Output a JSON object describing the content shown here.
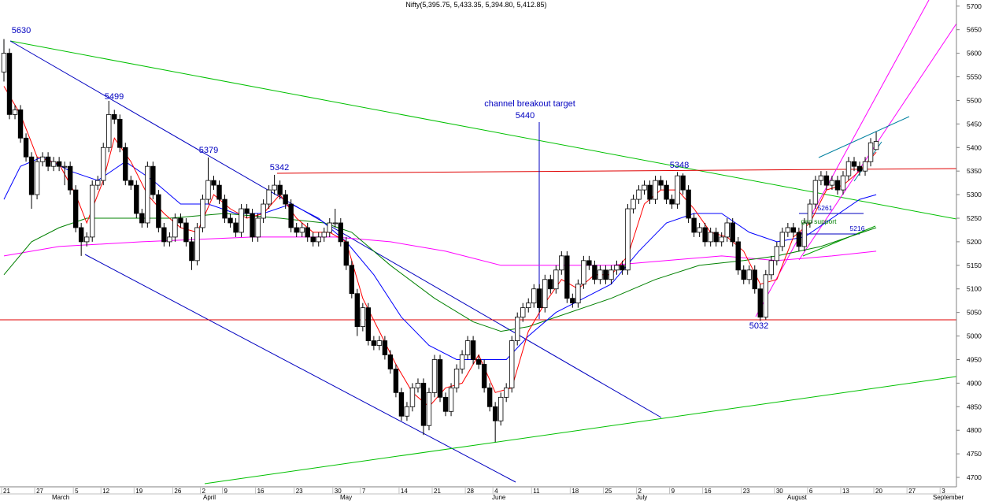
{
  "chart_data": {
    "type": "candlestick",
    "title": "Nifty(5,395.75, 5,433.35, 5,394.80, 5,412.85)",
    "ylim": [
      4680,
      5713
    ],
    "yticks": [
      4700,
      4750,
      4800,
      4850,
      4900,
      4950,
      5000,
      5050,
      5100,
      5150,
      5200,
      5250,
      5300,
      5350,
      5400,
      5450,
      5500,
      5550,
      5600,
      5650,
      5700
    ],
    "categories": [
      "21",
      null,
      null,
      null,
      null,
      null,
      "27",
      null,
      null,
      null,
      null,
      null,
      null,
      "5",
      null,
      null,
      null,
      null,
      "12",
      null,
      null,
      null,
      null,
      null,
      "19",
      null,
      null,
      null,
      null,
      null,
      null,
      "26",
      null,
      null,
      null,
      null,
      "2",
      null,
      null,
      null,
      "9",
      null,
      null,
      null,
      null,
      null,
      "16",
      null,
      null,
      null,
      null,
      null,
      null,
      "23",
      null,
      null,
      null,
      null,
      null,
      null,
      "30",
      null,
      null,
      null,
      null,
      "7",
      null,
      null,
      null,
      null,
      null,
      null,
      "14",
      null,
      null,
      null,
      null,
      null,
      "21",
      null,
      null,
      null,
      null,
      null,
      "28",
      null,
      null,
      null,
      null,
      "4",
      null,
      null,
      null,
      null,
      null,
      null,
      "11",
      null,
      null,
      null,
      null,
      null,
      null,
      "18",
      null,
      null,
      null,
      null,
      null,
      "25",
      null,
      null,
      null,
      null,
      null,
      "2",
      null,
      null,
      null,
      null,
      null,
      "9",
      null,
      null,
      null,
      null,
      null,
      "16",
      null,
      null,
      null,
      null,
      null,
      null,
      "23",
      null,
      null,
      null,
      null,
      null,
      "30",
      null,
      null,
      null,
      null,
      null,
      "6",
      null,
      null,
      null,
      null,
      null,
      "13",
      null,
      null,
      null,
      null,
      null,
      "20",
      null,
      null,
      null,
      null,
      null,
      "27",
      null,
      null,
      null,
      null,
      null,
      "3",
      null,
      null
    ],
    "months": [
      "March",
      "April",
      "May",
      "June",
      "July",
      "August",
      "September"
    ],
    "ohlc": [
      [
        5560,
        5630,
        5540,
        5600
      ],
      [
        5600,
        5610,
        5460,
        5470
      ],
      [
        5470,
        5490,
        5460,
        5480
      ],
      [
        5480,
        5490,
        5410,
        5420
      ],
      [
        5420,
        5430,
        5370,
        5380
      ],
      [
        5380,
        5390,
        5270,
        5300
      ],
      [
        5300,
        5380,
        5290,
        5370
      ],
      [
        5370,
        5390,
        5360,
        5380
      ],
      [
        5380,
        5390,
        5350,
        5360
      ],
      [
        5360,
        5380,
        5350,
        5370
      ],
      [
        5370,
        5380,
        5350,
        5360
      ],
      [
        5360,
        5370,
        5320,
        5360
      ],
      [
        5360,
        5370,
        5300,
        5310
      ],
      [
        5310,
        5320,
        5220,
        5230
      ],
      [
        5230,
        5240,
        5170,
        5200
      ],
      [
        5200,
        5220,
        5190,
        5210
      ],
      [
        5210,
        5330,
        5200,
        5320
      ],
      [
        5320,
        5340,
        5310,
        5330
      ],
      [
        5330,
        5410,
        5320,
        5400
      ],
      [
        5400,
        5499,
        5390,
        5470
      ],
      [
        5470,
        5480,
        5450,
        5460
      ],
      [
        5460,
        5470,
        5390,
        5400
      ],
      [
        5400,
        5410,
        5320,
        5330
      ],
      [
        5330,
        5340,
        5310,
        5320
      ],
      [
        5320,
        5330,
        5250,
        5260
      ],
      [
        5260,
        5270,
        5230,
        5240
      ],
      [
        5240,
        5370,
        5230,
        5360
      ],
      [
        5360,
        5370,
        5290,
        5300
      ],
      [
        5300,
        5310,
        5220,
        5230
      ],
      [
        5230,
        5240,
        5190,
        5200
      ],
      [
        5200,
        5220,
        5190,
        5210
      ],
      [
        5210,
        5260,
        5200,
        5250
      ],
      [
        5250,
        5260,
        5230,
        5240
      ],
      [
        5240,
        5250,
        5190,
        5200
      ],
      [
        5200,
        5210,
        5140,
        5160
      ],
      [
        5160,
        5240,
        5150,
        5230
      ],
      [
        5230,
        5300,
        5220,
        5290
      ],
      [
        5290,
        5379,
        5280,
        5330
      ],
      [
        5330,
        5340,
        5310,
        5320
      ],
      [
        5320,
        5330,
        5280,
        5290
      ],
      [
        5290,
        5300,
        5240,
        5250
      ],
      [
        5250,
        5260,
        5230,
        5240
      ],
      [
        5240,
        5250,
        5210,
        5220
      ],
      [
        5220,
        5280,
        5210,
        5270
      ],
      [
        5270,
        5280,
        5250,
        5260
      ],
      [
        5260,
        5270,
        5200,
        5210
      ],
      [
        5210,
        5260,
        5200,
        5250
      ],
      [
        5250,
        5290,
        5240,
        5280
      ],
      [
        5280,
        5320,
        5270,
        5310
      ],
      [
        5310,
        5342,
        5300,
        5320
      ],
      [
        5320,
        5330,
        5290,
        5300
      ],
      [
        5300,
        5310,
        5270,
        5280
      ],
      [
        5280,
        5290,
        5220,
        5230
      ],
      [
        5230,
        5240,
        5210,
        5220
      ],
      [
        5220,
        5240,
        5210,
        5230
      ],
      [
        5230,
        5240,
        5200,
        5210
      ],
      [
        5210,
        5220,
        5190,
        5200
      ],
      [
        5200,
        5220,
        5190,
        5210
      ],
      [
        5210,
        5230,
        5200,
        5220
      ],
      [
        5220,
        5250,
        5210,
        5240
      ],
      [
        5240,
        5270,
        5230,
        5240
      ],
      [
        5240,
        5250,
        5190,
        5200
      ],
      [
        5200,
        5210,
        5140,
        5150
      ],
      [
        5150,
        5160,
        5080,
        5090
      ],
      [
        5090,
        5100,
        5000,
        5020
      ],
      [
        5020,
        5070,
        5010,
        5060
      ],
      [
        5060,
        5070,
        4980,
        4990
      ],
      [
        4990,
        5000,
        4970,
        4980
      ],
      [
        4980,
        5000,
        4970,
        4990
      ],
      [
        4990,
        5000,
        4950,
        4960
      ],
      [
        4960,
        4970,
        4920,
        4930
      ],
      [
        4930,
        4940,
        4870,
        4880
      ],
      [
        4880,
        4890,
        4820,
        4830
      ],
      [
        4830,
        4860,
        4820,
        4850
      ],
      [
        4850,
        4900,
        4840,
        4890
      ],
      [
        4890,
        4910,
        4880,
        4900
      ],
      [
        4900,
        4910,
        4790,
        4810
      ],
      [
        4810,
        4890,
        4800,
        4880
      ],
      [
        4880,
        4960,
        4870,
        4950
      ],
      [
        4950,
        4960,
        4860,
        4870
      ],
      [
        4870,
        4880,
        4830,
        4840
      ],
      [
        4840,
        4900,
        4830,
        4890
      ],
      [
        4890,
        4940,
        4880,
        4930
      ],
      [
        4930,
        4970,
        4920,
        4960
      ],
      [
        4960,
        5000,
        4950,
        4990
      ],
      [
        4990,
        5000,
        4940,
        4950
      ],
      [
        4950,
        4960,
        4930,
        4940
      ],
      [
        4940,
        4950,
        4880,
        4890
      ],
      [
        4890,
        4900,
        4840,
        4850
      ],
      [
        4850,
        4860,
        4775,
        4820
      ],
      [
        4820,
        4880,
        4810,
        4870
      ],
      [
        4870,
        4900,
        4860,
        4890
      ],
      [
        4890,
        5000,
        4880,
        4990
      ],
      [
        4990,
        5050,
        4980,
        5040
      ],
      [
        5040,
        5070,
        5030,
        5060
      ],
      [
        5060,
        5080,
        5050,
        5070
      ],
      [
        5070,
        5110,
        5060,
        5100
      ],
      [
        5100,
        5110,
        5050,
        5060
      ],
      [
        5060,
        5130,
        5050,
        5120
      ],
      [
        5120,
        5130,
        5090,
        5100
      ],
      [
        5100,
        5150,
        5090,
        5140
      ],
      [
        5140,
        5180,
        5130,
        5170
      ],
      [
        5170,
        5180,
        5070,
        5080
      ],
      [
        5080,
        5090,
        5060,
        5070
      ],
      [
        5070,
        5120,
        5060,
        5110
      ],
      [
        5110,
        5170,
        5100,
        5160
      ],
      [
        5160,
        5170,
        5140,
        5150
      ],
      [
        5150,
        5160,
        5110,
        5120
      ],
      [
        5120,
        5150,
        5110,
        5140
      ],
      [
        5140,
        5150,
        5110,
        5120
      ],
      [
        5120,
        5150,
        5110,
        5140
      ],
      [
        5140,
        5160,
        5130,
        5150
      ],
      [
        5150,
        5160,
        5130,
        5140
      ],
      [
        5140,
        5280,
        5130,
        5270
      ],
      [
        5270,
        5300,
        5260,
        5290
      ],
      [
        5290,
        5320,
        5280,
        5310
      ],
      [
        5310,
        5330,
        5300,
        5320
      ],
      [
        5320,
        5330,
        5280,
        5290
      ],
      [
        5290,
        5340,
        5280,
        5330
      ],
      [
        5330,
        5340,
        5310,
        5320
      ],
      [
        5320,
        5330,
        5280,
        5290
      ],
      [
        5290,
        5300,
        5270,
        5280
      ],
      [
        5280,
        5348,
        5270,
        5340
      ],
      [
        5340,
        5345,
        5300,
        5310
      ],
      [
        5310,
        5320,
        5240,
        5250
      ],
      [
        5250,
        5260,
        5210,
        5220
      ],
      [
        5220,
        5240,
        5210,
        5230
      ],
      [
        5230,
        5240,
        5190,
        5200
      ],
      [
        5200,
        5230,
        5190,
        5220
      ],
      [
        5220,
        5230,
        5190,
        5200
      ],
      [
        5200,
        5220,
        5190,
        5210
      ],
      [
        5210,
        5250,
        5200,
        5240
      ],
      [
        5240,
        5250,
        5190,
        5200
      ],
      [
        5200,
        5210,
        5130,
        5140
      ],
      [
        5140,
        5150,
        5110,
        5120
      ],
      [
        5120,
        5150,
        5110,
        5140
      ],
      [
        5140,
        5150,
        5090,
        5100
      ],
      [
        5100,
        5110,
        5032,
        5040
      ],
      [
        5040,
        5140,
        5035,
        5130
      ],
      [
        5130,
        5170,
        5120,
        5160
      ],
      [
        5160,
        5200,
        5150,
        5190
      ],
      [
        5190,
        5230,
        5180,
        5220
      ],
      [
        5220,
        5240,
        5210,
        5230
      ],
      [
        5230,
        5240,
        5210,
        5220
      ],
      [
        5220,
        5230,
        5180,
        5190
      ],
      [
        5190,
        5250,
        5180,
        5240
      ],
      [
        5240,
        5290,
        5230,
        5280
      ],
      [
        5280,
        5340,
        5270,
        5330
      ],
      [
        5330,
        5350,
        5320,
        5340
      ],
      [
        5340,
        5350,
        5310,
        5320
      ],
      [
        5320,
        5340,
        5310,
        5330
      ],
      [
        5330,
        5340,
        5300,
        5310
      ],
      [
        5310,
        5350,
        5300,
        5340
      ],
      [
        5340,
        5380,
        5330,
        5370
      ],
      [
        5370,
        5380,
        5350,
        5360
      ],
      [
        5360,
        5370,
        5340,
        5350
      ],
      [
        5350,
        5380,
        5340,
        5370
      ],
      [
        5370,
        5420,
        5360,
        5410
      ],
      [
        5395.75,
        5433.35,
        5394.8,
        5412.85
      ],
      null,
      null,
      null,
      null,
      null,
      null,
      null,
      null,
      null,
      null,
      null,
      null,
      null,
      null
    ],
    "averages": [
      {
        "color": "#ff00ff",
        "x": [
          0,
          10,
          25,
          45,
          60,
          70,
          80,
          90,
          100,
          110,
          120,
          130,
          140,
          150,
          158
        ],
        "values": [
          5170,
          5190,
          5200,
          5210,
          5210,
          5200,
          5180,
          5150,
          5150,
          5150,
          5160,
          5170,
          5160,
          5170,
          5180
        ]
      },
      {
        "color": "#008000",
        "x": [
          0,
          5,
          10,
          15,
          22,
          30,
          40,
          50,
          58,
          63,
          70,
          78,
          85,
          90,
          95,
          100,
          110,
          118,
          126,
          134,
          140,
          148,
          158
        ],
        "values": [
          5130,
          5200,
          5230,
          5250,
          5250,
          5250,
          5260,
          5250,
          5240,
          5220,
          5150,
          5080,
          5030,
          5010,
          5020,
          5040,
          5080,
          5120,
          5150,
          5160,
          5170,
          5190,
          5230
        ]
      },
      {
        "color": "#0000ff",
        "x": [
          0,
          3,
          7,
          12,
          17,
          22,
          27,
          32,
          37,
          42,
          47,
          52,
          57,
          62,
          67,
          72,
          77,
          82,
          87,
          91,
          95,
          100,
          105,
          110,
          115,
          120,
          125,
          130,
          135,
          140,
          145,
          150,
          155,
          158
        ],
        "values": [
          5290,
          5360,
          5380,
          5350,
          5330,
          5370,
          5330,
          5280,
          5280,
          5260,
          5260,
          5280,
          5250,
          5200,
          5130,
          5040,
          4980,
          4950,
          4950,
          4950,
          5000,
          5050,
          5080,
          5110,
          5180,
          5240,
          5260,
          5260,
          5220,
          5200,
          5210,
          5250,
          5290,
          5300
        ]
      },
      {
        "color": "#ff0000",
        "x": [
          0,
          3,
          6,
          10,
          13,
          15,
          18,
          20,
          23,
          26,
          29,
          32,
          35,
          38,
          41,
          44,
          47,
          50,
          53,
          56,
          59,
          62,
          65,
          68,
          71,
          74,
          77,
          80,
          83,
          86,
          89,
          92,
          95,
          98,
          101,
          104,
          107,
          110,
          113,
          116,
          119,
          122,
          125,
          128,
          131,
          134,
          137,
          140,
          143,
          146,
          149,
          152,
          155,
          158
        ],
        "values": [
          5530,
          5470,
          5380,
          5365,
          5300,
          5240,
          5330,
          5420,
          5370,
          5300,
          5260,
          5230,
          5220,
          5300,
          5270,
          5250,
          5260,
          5300,
          5250,
          5220,
          5220,
          5200,
          5080,
          5010,
          4940,
          4880,
          4850,
          4890,
          4900,
          4960,
          4880,
          4890,
          5010,
          5070,
          5120,
          5100,
          5130,
          5130,
          5170,
          5280,
          5310,
          5310,
          5270,
          5220,
          5210,
          5180,
          5110,
          5120,
          5210,
          5240,
          5310,
          5320,
          5350,
          5390
        ]
      }
    ],
    "annotations": [
      "5630",
      "5499",
      "5379",
      "5342",
      "channel breakout target",
      "5440",
      "5348",
      "5032",
      "5261",
      "gap support",
      "5216"
    ]
  }
}
